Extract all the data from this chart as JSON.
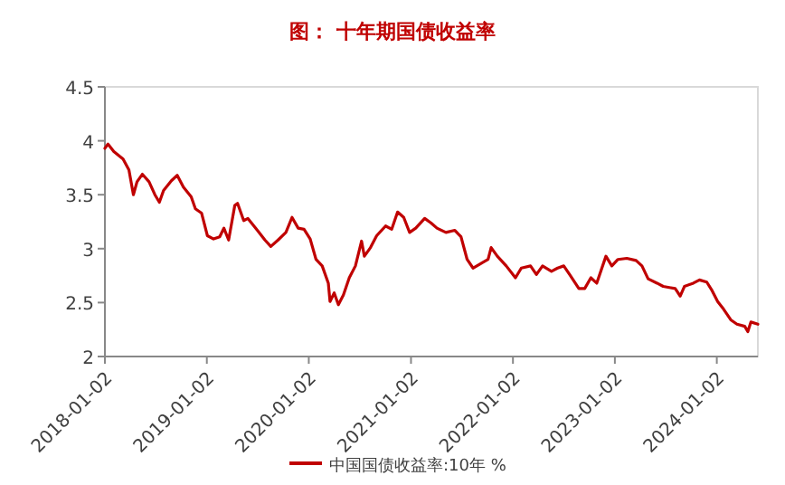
{
  "chart_data": {
    "type": "line",
    "title": "图：  十年期国债收益率",
    "x": [
      "2018-01-02",
      "2018-01-13",
      "2018-02-03",
      "2018-03-08",
      "2018-03-29",
      "2018-04-14",
      "2018-04-27",
      "2018-05-16",
      "2018-06-09",
      "2018-06-30",
      "2018-07-16",
      "2018-07-31",
      "2018-08-28",
      "2018-09-18",
      "2018-10-10",
      "2018-11-07",
      "2018-11-22",
      "2018-12-14",
      "2019-01-04",
      "2019-01-26",
      "2019-02-17",
      "2019-03-04",
      "2019-03-21",
      "2019-04-12",
      "2019-04-22",
      "2019-05-14",
      "2019-05-29",
      "2019-06-26",
      "2019-07-29",
      "2019-08-19",
      "2019-09-14",
      "2019-10-12",
      "2019-11-03",
      "2019-11-25",
      "2019-12-16",
      "2020-01-07",
      "2020-01-28",
      "2020-02-19",
      "2020-03-12",
      "2020-03-18",
      "2020-04-02",
      "2020-04-17",
      "2020-05-05",
      "2020-05-26",
      "2020-06-17",
      "2020-07-09",
      "2020-07-19",
      "2020-08-10",
      "2020-09-01",
      "2020-10-03",
      "2020-10-25",
      "2020-11-15",
      "2020-12-07",
      "2020-12-28",
      "2021-01-19",
      "2021-02-20",
      "2021-03-14",
      "2021-04-05",
      "2021-05-07",
      "2021-06-08",
      "2021-06-30",
      "2021-07-22",
      "2021-08-12",
      "2021-09-14",
      "2021-10-05",
      "2021-10-16",
      "2021-11-07",
      "2021-12-09",
      "2022-01-11",
      "2022-02-01",
      "2022-03-06",
      "2022-03-27",
      "2022-04-18",
      "2022-05-20",
      "2022-06-11",
      "2022-07-03",
      "2022-07-24",
      "2022-08-26",
      "2022-09-16",
      "2022-10-08",
      "2022-10-29",
      "2022-12-01",
      "2022-12-22",
      "2023-01-13",
      "2023-02-14",
      "2023-03-19",
      "2023-04-09",
      "2023-05-01",
      "2023-06-02",
      "2023-06-24",
      "2023-07-16",
      "2023-08-06",
      "2023-08-24",
      "2023-09-08",
      "2023-10-10",
      "2023-11-01",
      "2023-11-27",
      "2023-12-14",
      "2024-01-05",
      "2024-01-26",
      "2024-02-21",
      "2024-03-14",
      "2024-04-11",
      "2024-04-22",
      "2024-05-03",
      "2024-05-28"
    ],
    "series": [
      {
        "name": "中国国债收益率:10年 %",
        "color": "#c00000",
        "values": [
          3.93,
          3.97,
          3.9,
          3.83,
          3.73,
          3.5,
          3.62,
          3.69,
          3.62,
          3.5,
          3.43,
          3.54,
          3.63,
          3.68,
          3.57,
          3.48,
          3.37,
          3.33,
          3.12,
          3.09,
          3.11,
          3.19,
          3.08,
          3.4,
          3.42,
          3.26,
          3.28,
          3.19,
          3.08,
          3.02,
          3.08,
          3.15,
          3.29,
          3.19,
          3.18,
          3.09,
          2.9,
          2.84,
          2.68,
          2.51,
          2.59,
          2.48,
          2.57,
          2.73,
          2.84,
          3.07,
          2.93,
          3.01,
          3.12,
          3.21,
          3.18,
          3.34,
          3.29,
          3.15,
          3.19,
          3.28,
          3.24,
          3.19,
          3.15,
          3.17,
          3.11,
          2.9,
          2.82,
          2.87,
          2.9,
          3.01,
          2.93,
          2.84,
          2.73,
          2.82,
          2.84,
          2.76,
          2.84,
          2.79,
          2.82,
          2.84,
          2.76,
          2.63,
          2.63,
          2.73,
          2.68,
          2.93,
          2.84,
          2.9,
          2.91,
          2.89,
          2.84,
          2.72,
          2.68,
          2.65,
          2.64,
          2.63,
          2.56,
          2.65,
          2.68,
          2.71,
          2.69,
          2.62,
          2.51,
          2.44,
          2.34,
          2.3,
          2.28,
          2.23,
          2.32,
          2.3
        ]
      }
    ],
    "xlim": [
      "2018-01-02",
      "2024-05-28"
    ],
    "xticks": [
      "2018-01-02",
      "2019-01-02",
      "2020-01-02",
      "2021-01-02",
      "2022-01-02",
      "2023-01-02",
      "2024-01-02"
    ],
    "ylim": [
      2,
      4.5
    ],
    "yticks": [
      2,
      2.5,
      3,
      3.5,
      4,
      4.5
    ],
    "legend": "bottom",
    "grid": false,
    "marker": "none",
    "line_style": "solid"
  }
}
